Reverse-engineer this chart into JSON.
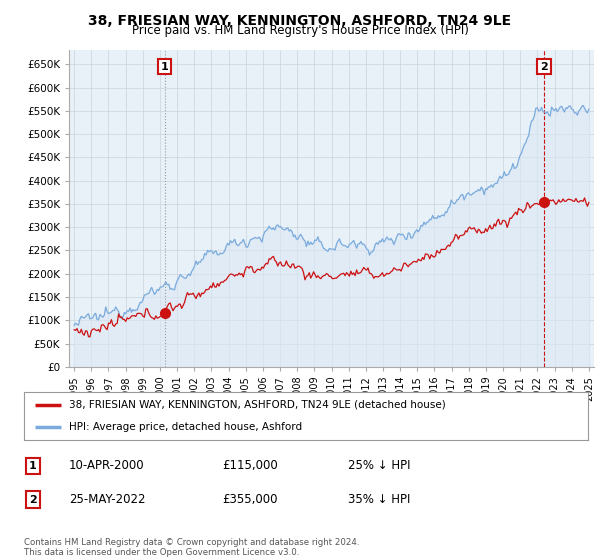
{
  "title": "38, FRIESIAN WAY, KENNINGTON, ASHFORD, TN24 9LE",
  "subtitle": "Price paid vs. HM Land Registry's House Price Index (HPI)",
  "ylabel_ticks": [
    "£0",
    "£50K",
    "£100K",
    "£150K",
    "£200K",
    "£250K",
    "£300K",
    "£350K",
    "£400K",
    "£450K",
    "£500K",
    "£550K",
    "£600K",
    "£650K"
  ],
  "ytick_values": [
    0,
    50000,
    100000,
    150000,
    200000,
    250000,
    300000,
    350000,
    400000,
    450000,
    500000,
    550000,
    600000,
    650000
  ],
  "ylim": [
    0,
    680000
  ],
  "xlim_years": [
    1994.7,
    2025.3
  ],
  "xtick_years": [
    1995,
    1996,
    1997,
    1998,
    1999,
    2000,
    2001,
    2002,
    2003,
    2004,
    2005,
    2006,
    2007,
    2008,
    2009,
    2010,
    2011,
    2012,
    2013,
    2014,
    2015,
    2016,
    2017,
    2018,
    2019,
    2020,
    2021,
    2022,
    2023,
    2024,
    2025
  ],
  "hpi_color": "#7aabdc",
  "hpi_fill_color": "#dce8f5",
  "price_paid_color": "#cc1111",
  "purchase1_year": 2000.27,
  "purchase1_price": 115000,
  "purchase2_year": 2022.39,
  "purchase2_price": 355000,
  "legend_label1": "38, FRIESIAN WAY, KENNINGTON, ASHFORD, TN24 9LE (detached house)",
  "legend_label2": "HPI: Average price, detached house, Ashford",
  "sale1_text": "10-APR-2000",
  "sale1_price_text": "£115,000",
  "sale1_hpi_text": "25% ↓ HPI",
  "sale2_text": "25-MAY-2022",
  "sale2_price_text": "£355,000",
  "sale2_hpi_text": "35% ↓ HPI",
  "copyright_text": "Contains HM Land Registry data © Crown copyright and database right 2024.\nThis data is licensed under the Open Government Licence v3.0.",
  "bg_color": "#ffffff",
  "plot_bg_color": "#e8f0f8",
  "grid_color": "#c8d4e0",
  "vline1_color": "#aaaaaa",
  "vline2_color": "#cc1111"
}
